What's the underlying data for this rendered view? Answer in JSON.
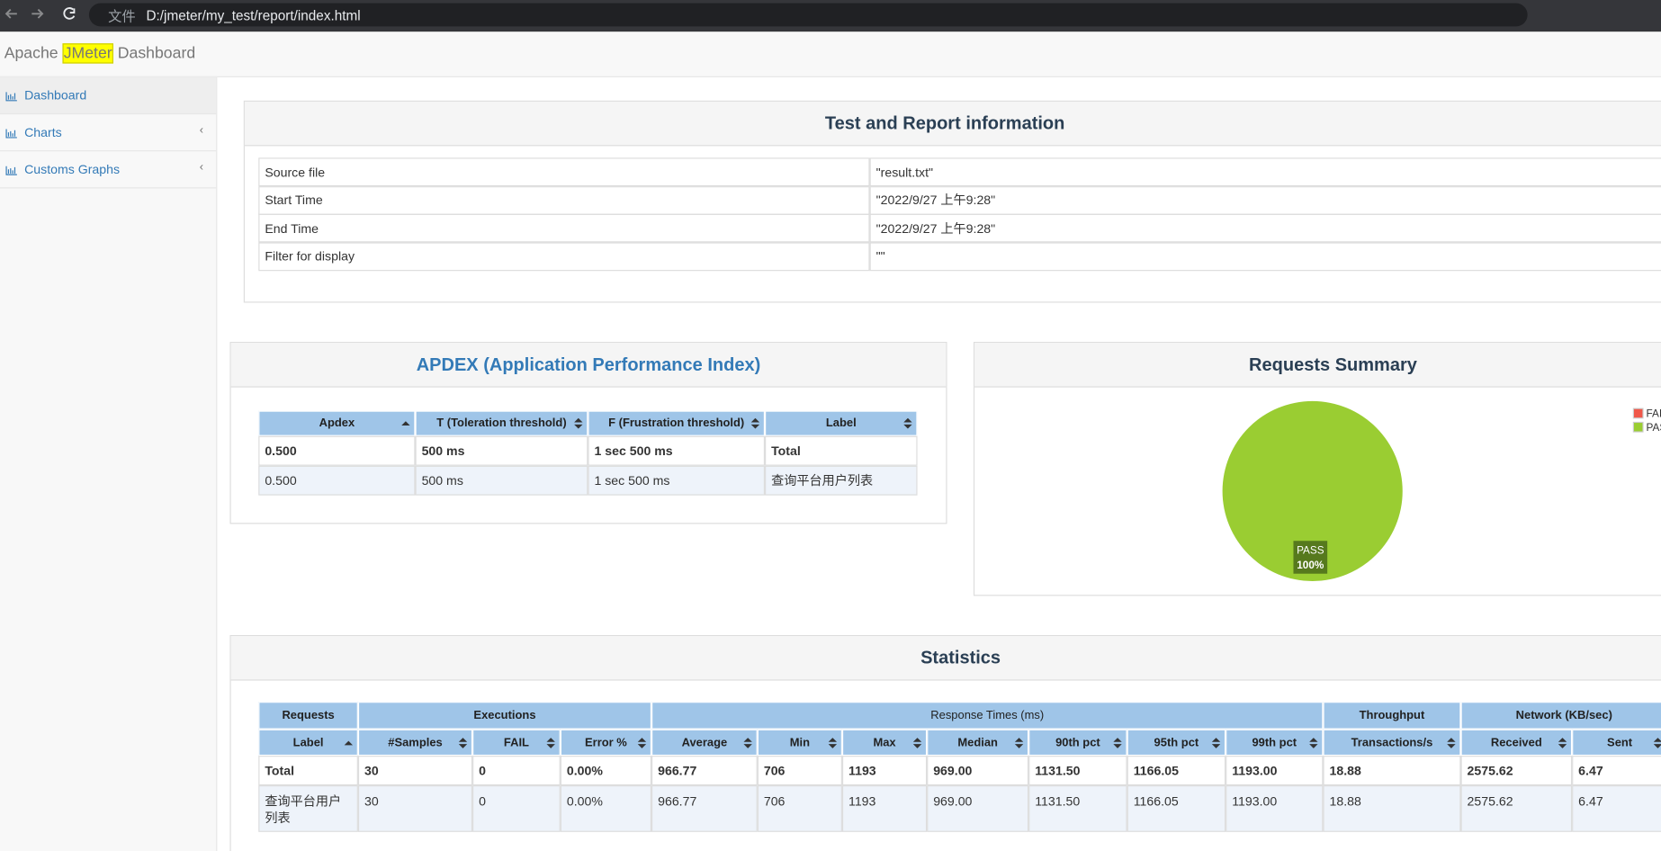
{
  "browser": {
    "address_prefix": "文件",
    "url": "D:/jmeter/my_test/report/index.html"
  },
  "header": {
    "title_before": "Apache",
    "title_highlight": "JMeter",
    "title_after": "Dashboard"
  },
  "sidebar": {
    "items": [
      "Dashboard",
      "Charts",
      "Customs Graphs"
    ]
  },
  "test_info": {
    "title": "Test and Report information",
    "rows": [
      [
        "Source file",
        "\"result.txt\""
      ],
      [
        "Start Time",
        "\"2022/9/27 上午9:28\""
      ],
      [
        "End Time",
        "\"2022/9/27 上午9:28\""
      ],
      [
        "Filter for display",
        "\"\""
      ]
    ]
  },
  "apdex": {
    "title": "APDEX (Application Performance Index)",
    "columns": [
      "Apdex",
      "T (Toleration threshold)",
      "F (Frustration threshold)",
      "Label"
    ],
    "rows": [
      [
        "0.500",
        "500 ms",
        "1 sec 500 ms",
        "Total"
      ],
      [
        "0.500",
        "500 ms",
        "1 sec 500 ms",
        "查询平台用户列表"
      ]
    ]
  },
  "requests_summary": {
    "title": "Requests Summary",
    "chart_data": {
      "type": "pie",
      "categories": [
        "FAIL",
        "PASS"
      ],
      "values": [
        0,
        100
      ],
      "value_labels": [
        null,
        "100%"
      ],
      "colors": [
        "#f0584a",
        "#9acd32"
      ]
    }
  },
  "statistics": {
    "title": "Statistics",
    "groups": [
      "Requests",
      "Executions",
      "Response Times (ms)",
      "Throughput",
      "Network (KB/sec)"
    ],
    "columns": [
      "Label",
      "#Samples",
      "FAIL",
      "Error %",
      "Average",
      "Min",
      "Max",
      "Median",
      "90th pct",
      "95th pct",
      "99th pct",
      "Transactions/s",
      "Received",
      "Sent"
    ],
    "rows": [
      [
        "Total",
        "30",
        "0",
        "0.00%",
        "966.77",
        "706",
        "1193",
        "969.00",
        "1131.50",
        "1166.05",
        "1193.00",
        "18.88",
        "2575.62",
        "6.47"
      ],
      [
        "查询平台用户列表",
        "30",
        "0",
        "0.00%",
        "966.77",
        "706",
        "1193",
        "969.00",
        "1131.50",
        "1166.05",
        "1193.00",
        "18.88",
        "2575.62",
        "6.47"
      ]
    ]
  }
}
